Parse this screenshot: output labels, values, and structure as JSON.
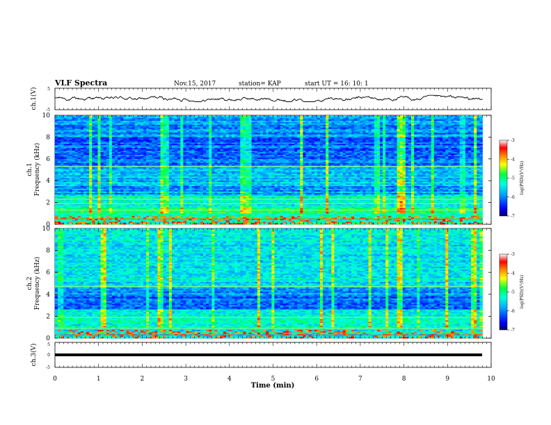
{
  "header": {
    "title": "VLF Spectra",
    "date": "Nov.15, 2017",
    "station": "station= KAP",
    "start": "start  UT =   16: 10: 1"
  },
  "colors": {
    "cmap": [
      "#000066",
      "#0000ff",
      "#00a0ff",
      "#00ffe0",
      "#00ff40",
      "#ffff00",
      "#ff8000",
      "#ff0000",
      "#ffffff"
    ]
  },
  "chart_data": [
    {
      "type": "line",
      "panel": "waveform-ch1",
      "ylabel": "ch.1(V)",
      "ylim": [
        -5,
        5
      ],
      "yticks": [
        "5",
        "-5"
      ],
      "xlim": [
        0,
        10
      ],
      "approx_range": [
        -1.3,
        1.7
      ],
      "trace_color": "#000000"
    },
    {
      "type": "heatmap",
      "panel": "spectrogram-ch1",
      "ylabel_line1": "ch.1",
      "ylabel_line2": "Frequency (kHz)",
      "ylim": [
        0,
        10
      ],
      "yticks": [
        "0",
        "2",
        "4",
        "6",
        "8",
        "10"
      ],
      "xlim": [
        0,
        9.8
      ],
      "colorbar": {
        "label": "log(PSD)(V²/Hz)",
        "range": [
          -7,
          -3
        ],
        "ticks": [
          "-3",
          "-4",
          "-5",
          "-6",
          "-7"
        ]
      }
    },
    {
      "type": "heatmap",
      "panel": "spectrogram-ch2",
      "ylabel_line1": "ch.2",
      "ylabel_line2": "Frequency (kHz)",
      "ylim": [
        0,
        10
      ],
      "yticks": [
        "0",
        "2",
        "4",
        "6",
        "8",
        "10"
      ],
      "xlim": [
        0,
        9.8
      ],
      "colorbar": {
        "label": "log(PSD)(V²/Hz)",
        "range": [
          -7,
          -3
        ],
        "ticks": [
          "-3",
          "-4",
          "-5",
          "-6",
          "-7"
        ]
      }
    },
    {
      "type": "line",
      "panel": "waveform-ch3",
      "ylabel": "ch.3(V)",
      "ylim": [
        -5,
        5
      ],
      "yticks": [
        "5",
        "0",
        "-5"
      ],
      "xlim": [
        0,
        10
      ],
      "constant_value": 0
    }
  ],
  "xaxis": {
    "label": "Time (min)",
    "ticks": [
      "0",
      "1",
      "2",
      "3",
      "4",
      "5",
      "6",
      "7",
      "8",
      "9",
      "10"
    ],
    "range": [
      0,
      10
    ]
  }
}
